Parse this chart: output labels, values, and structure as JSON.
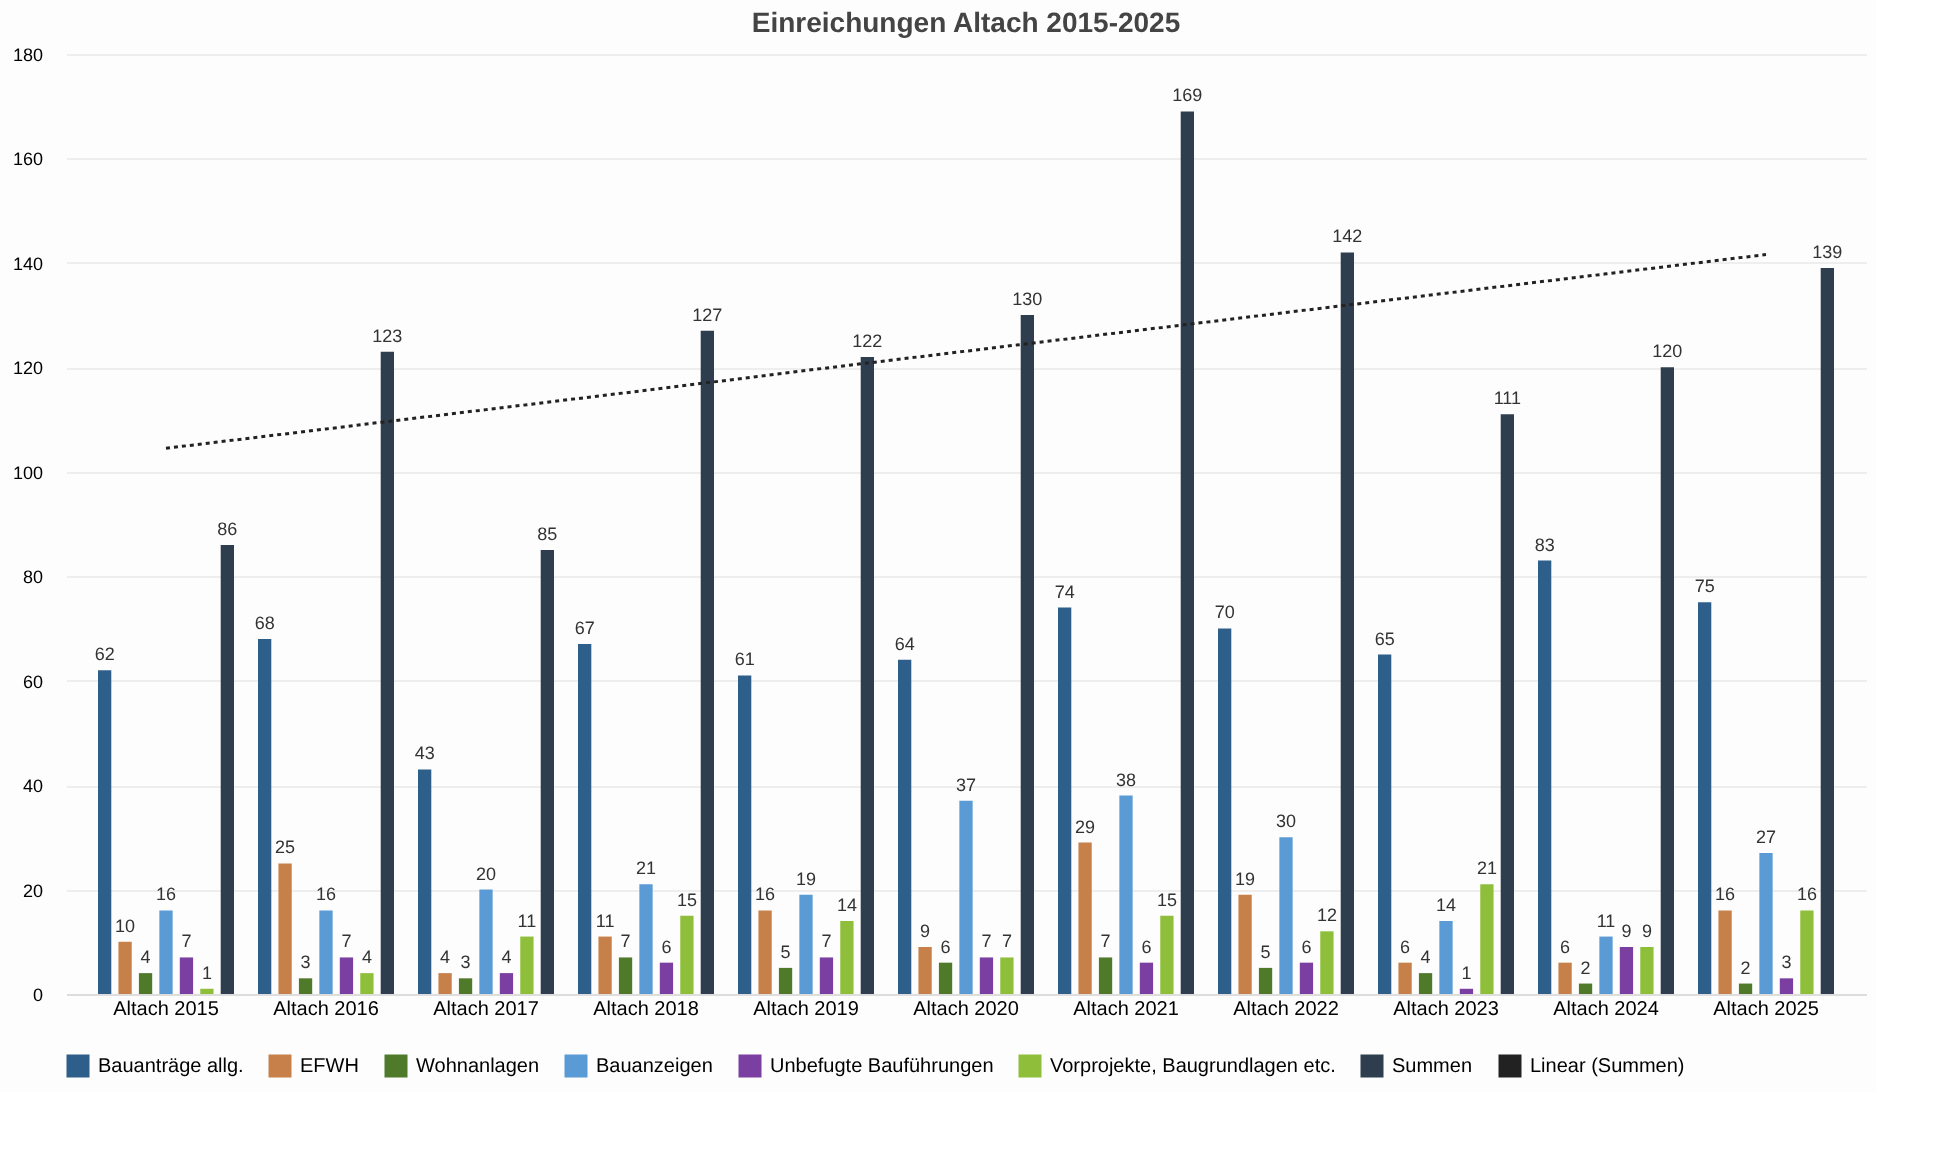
{
  "chart_data": {
    "type": "bar",
    "title": "Einreichungen Altach 2015-2025",
    "categories": [
      "Altach 2015",
      "Altach 2016",
      "Altach 2017",
      "Altach 2018",
      "Altach 2019",
      "Altach 2020",
      "Altach 2021",
      "Altach 2022",
      "Altach 2023",
      "Altach 2024",
      "Altach 2025"
    ],
    "series": [
      {
        "name": "Bauanträge allg.",
        "color": "#2e5f8a",
        "values": [
          62,
          68,
          43,
          67,
          61,
          64,
          74,
          70,
          65,
          83,
          75
        ],
        "value_labels": [
          "62",
          "68",
          "43",
          "67",
          "61",
          "64",
          "74",
          "70",
          "65",
          "83",
          "75"
        ]
      },
      {
        "name": "EFWH",
        "color": "#c8804a",
        "values": [
          10,
          25,
          4,
          11,
          16,
          9,
          29,
          19,
          6,
          6,
          16
        ],
        "value_labels": [
          "10",
          "25",
          "4",
          "11",
          "16",
          "9",
          "29",
          "19",
          "6",
          "6",
          "16"
        ]
      },
      {
        "name": "Wohnanlagen",
        "color": "#4f7a2a",
        "values": [
          4,
          3,
          3,
          7,
          5,
          6,
          7,
          5,
          4,
          2,
          2
        ],
        "value_labels": [
          "4",
          "3",
          "3",
          "7",
          "5",
          "6",
          "7",
          "5",
          "4",
          "2",
          "2"
        ]
      },
      {
        "name": "Bauanzeigen",
        "color": "#5b9bd5",
        "values": [
          16,
          16,
          20,
          21,
          19,
          37,
          38,
          30,
          14,
          11,
          27
        ],
        "value_labels": [
          "16",
          "16",
          "20",
          "21",
          "19",
          "37",
          "38",
          "30",
          "14",
          "11",
          "27"
        ]
      },
      {
        "name": "Unbefugte Bauführungen",
        "color": "#7a3fa0",
        "values": [
          7,
          7,
          4,
          6,
          7,
          7,
          6,
          6,
          1,
          9,
          3
        ],
        "value_labels": [
          "7",
          "7",
          "4",
          "6",
          "7",
          "7",
          "6",
          "6",
          "1",
          "9",
          "3"
        ]
      },
      {
        "name": "Vorprojekte, Baugrundlagen etc.",
        "color": "#8fbf3a",
        "values": [
          1,
          4,
          11,
          15,
          14,
          7,
          15,
          12,
          21,
          9,
          16
        ],
        "value_labels": [
          "1",
          "4",
          "11",
          "15",
          "14",
          "7",
          "15",
          "12",
          "21",
          "9",
          "16"
        ]
      },
      {
        "name": "Summen",
        "color": "#2f3e4e",
        "values": [
          86,
          123,
          85,
          127,
          122,
          130,
          169,
          142,
          111,
          120,
          139
        ],
        "value_labels": [
          "86",
          "123",
          "85",
          "127",
          "122",
          "130",
          "169",
          "142",
          "111",
          "120",
          "139"
        ]
      },
      {
        "name": "Linear (Summen)",
        "type": "line",
        "line_style": "dotted",
        "color": "#222222",
        "values": [
          104.5,
          108.2,
          111.9,
          115.6,
          119.4,
          123.1,
          126.8,
          130.5,
          134.2,
          137.9,
          141.6
        ]
      }
    ],
    "ylim": [
      0,
      180
    ],
    "yticks": [
      0,
      20,
      40,
      60,
      80,
      100,
      120,
      140,
      160,
      180
    ],
    "grid": "y",
    "legend": "bottom"
  }
}
